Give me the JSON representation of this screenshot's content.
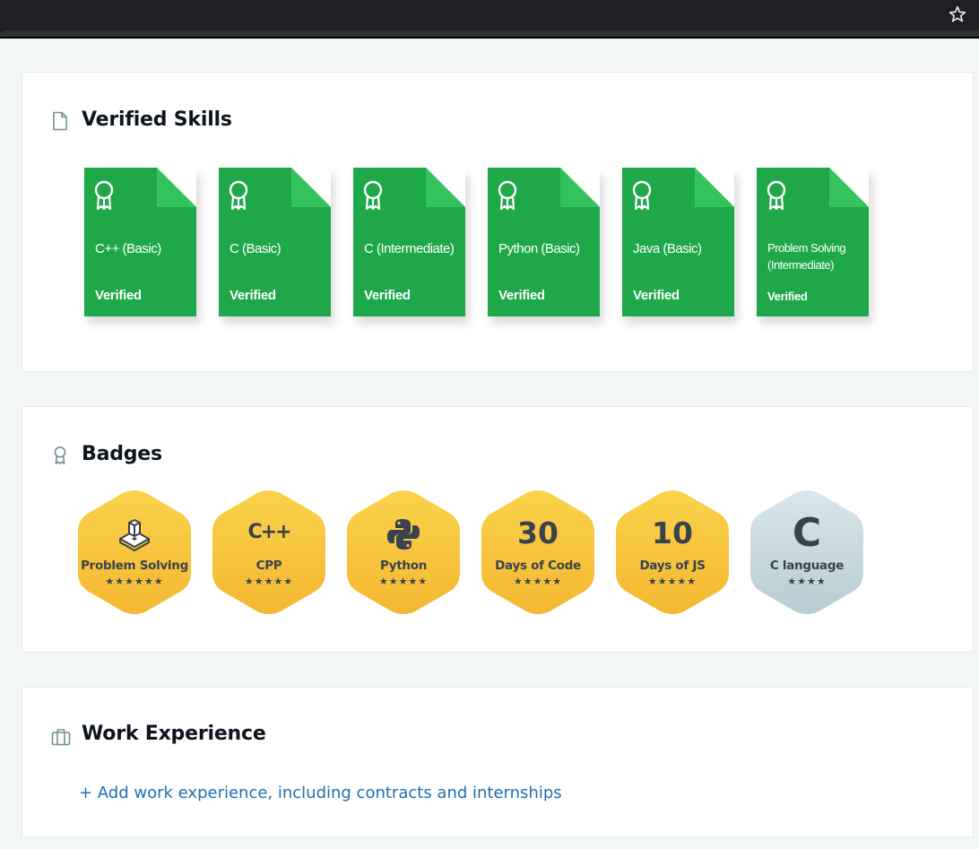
{
  "browser": {
    "bookmark_icon": "star-icon"
  },
  "verified_skills": {
    "title": "Verified Skills",
    "icon": "document-icon",
    "accent_color": "#1fa84a",
    "fold_color": "#34c25c",
    "items": [
      {
        "name": "C++ (Basic)",
        "status": "Verified"
      },
      {
        "name": "C (Basic)",
        "status": "Verified"
      },
      {
        "name": "C (Intermediate)",
        "status": "Verified"
      },
      {
        "name": "Python (Basic)",
        "status": "Verified"
      },
      {
        "name": "Java (Basic)",
        "status": "Verified"
      },
      {
        "name": "Problem Solving (Intermediate)",
        "status": "Verified"
      }
    ]
  },
  "badges": {
    "title": "Badges",
    "icon": "award-icon",
    "items": [
      {
        "label": "Problem Solving",
        "icon": "problem-solving-icon",
        "stars": "★★★★★★",
        "color": "gold"
      },
      {
        "label": "CPP",
        "icon": "cpp-icon",
        "symbol": "C++",
        "stars": "★★★★★",
        "color": "gold"
      },
      {
        "label": "Python",
        "icon": "python-icon",
        "stars": "★★★★★",
        "color": "gold"
      },
      {
        "label": "Days of Code",
        "number": "30",
        "stars": "★★★★★",
        "color": "gold"
      },
      {
        "label": "Days of JS",
        "number": "10",
        "stars": "★★★★★",
        "color": "gold"
      },
      {
        "label": "C language",
        "symbol": "C",
        "stars": "★★★★",
        "color": "silver"
      }
    ]
  },
  "work_experience": {
    "title": "Work Experience",
    "icon": "briefcase-icon",
    "add_link": "+ Add work experience, including contracts and internships"
  }
}
